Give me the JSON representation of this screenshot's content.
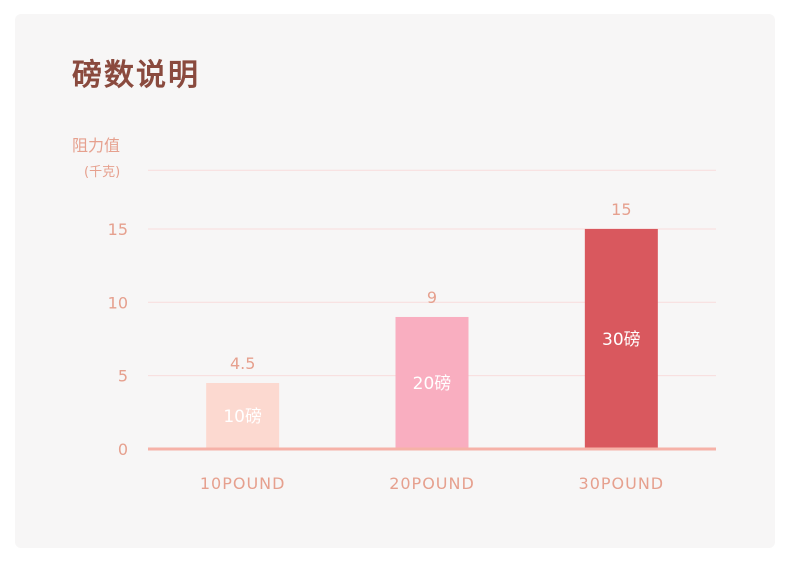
{
  "title": "磅数说明",
  "chart_data": {
    "type": "bar",
    "ylabel": "阻力值",
    "yunit": "(千克)",
    "ylim": [
      0,
      19
    ],
    "yticks": [
      0,
      5,
      10,
      15
    ],
    "grid": true,
    "categories": [
      "10POUND",
      "20POUND",
      "30POUND"
    ],
    "values": [
      4.5,
      9,
      15
    ],
    "value_labels": [
      "4.5",
      "9",
      "15"
    ],
    "bar_labels": [
      "10磅",
      "20磅",
      "30磅"
    ],
    "bar_colors": [
      "#fcd9d0",
      "#f9aec0",
      "#d9585e"
    ],
    "axis_color": "#f6b2a8",
    "grid_color": "#f8dcdc"
  }
}
